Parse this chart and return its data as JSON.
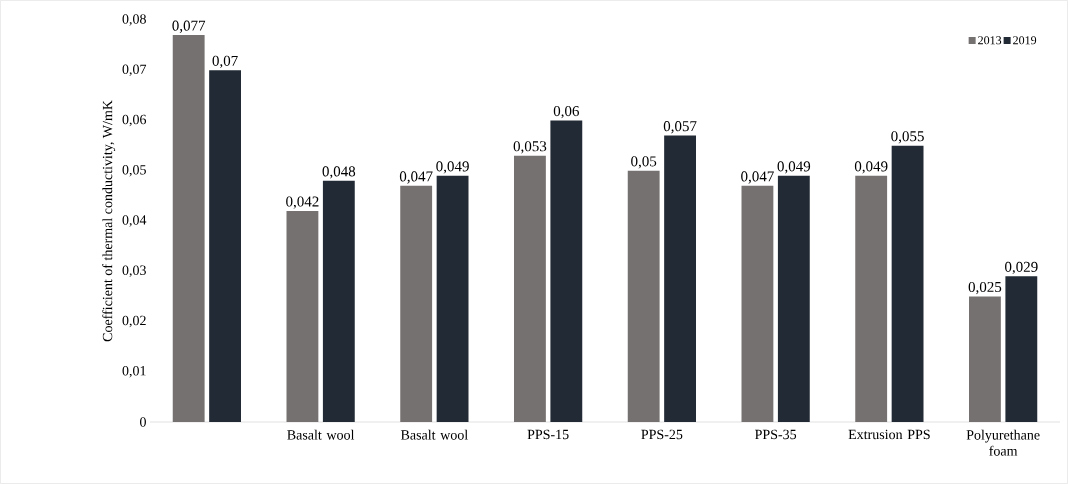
{
  "chart_data": {
    "type": "bar",
    "ylabel": "Coefficient of thermal conductivity, W/mK",
    "categories": [
      null,
      "Basalt wool",
      "Basalt wool",
      "PPS-15",
      "PPS-25",
      "PPS-35",
      "Extrusion PPS",
      "Polyurethane foam"
    ],
    "series": [
      {
        "name": "2013",
        "color": "#767171",
        "values": [
          0.077,
          0.042,
          0.047,
          0.053,
          0.05,
          0.047,
          0.049,
          0.025
        ],
        "value_labels": [
          "0,077",
          "0,042",
          "0,047",
          "0,053",
          "0,05",
          "0,047",
          "0,049",
          "0,025"
        ]
      },
      {
        "name": "2019",
        "color": "#222a35",
        "values": [
          0.07,
          0.048,
          0.049,
          0.06,
          0.057,
          0.049,
          0.055,
          0.029
        ],
        "value_labels": [
          "0,07",
          "0,048",
          "0,049",
          "0,06",
          "0,057",
          "0,049",
          "0,055",
          "0,029"
        ]
      }
    ],
    "ylim": [
      0,
      0.08
    ],
    "yticks": [
      0,
      {
        "value": 0.01,
        "label": "0,01"
      },
      {
        "value": 0.02,
        "label": "0,02"
      },
      {
        "value": 0.03,
        "label": "0,03"
      },
      {
        "value": 0.04,
        "label": "0,04"
      },
      {
        "value": 0.05,
        "label": "0,05"
      },
      {
        "value": 0.06,
        "label": "0,06"
      },
      {
        "value": 0.07,
        "label": "0,07"
      },
      {
        "value": 0.08,
        "label": "0,08"
      }
    ],
    "grid": false,
    "legend": "top right"
  }
}
